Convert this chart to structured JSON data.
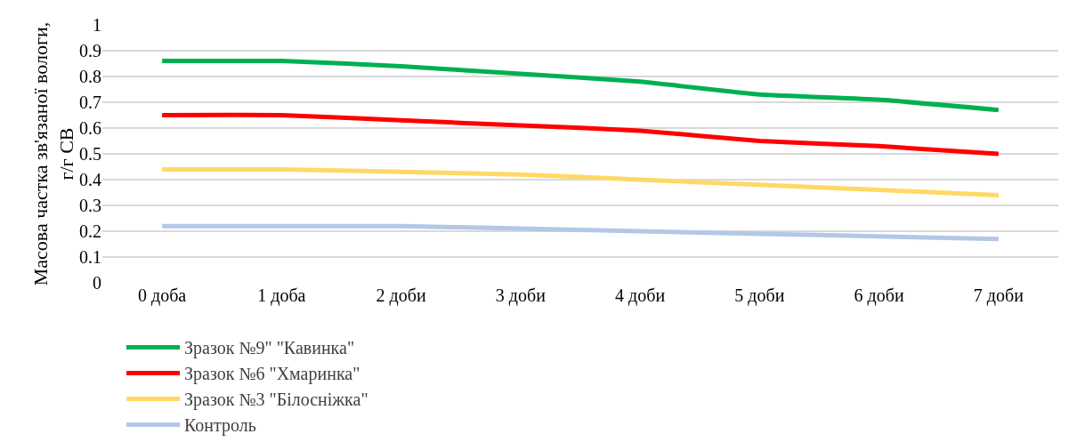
{
  "chart_data": {
    "type": "line",
    "ylabel": "Масова частка зв'язаної вологи, г/г СВ",
    "categories": [
      "0 доба",
      "1 доба",
      "2 доби",
      "3 доби",
      "4 доби",
      "5 доби",
      "6 доби",
      "7 доби"
    ],
    "series": [
      {
        "name": "Зразок №9\" \"Кавинка\"",
        "color": "#00b050",
        "values": [
          0.86,
          0.86,
          0.84,
          0.81,
          0.78,
          0.73,
          0.71,
          0.67
        ]
      },
      {
        "name": "Зразок №6 \"Хмаринка\"",
        "color": "#ff0000",
        "values": [
          0.65,
          0.65,
          0.63,
          0.61,
          0.59,
          0.55,
          0.53,
          0.5
        ]
      },
      {
        "name": "Зразок №3 \"Білосніжка\"",
        "color": "#ffd966",
        "values": [
          0.44,
          0.44,
          0.43,
          0.42,
          0.4,
          0.38,
          0.36,
          0.34
        ]
      },
      {
        "name": "Контроль",
        "color": "#b4c7e7",
        "values": [
          0.22,
          0.22,
          0.22,
          0.21,
          0.2,
          0.19,
          0.18,
          0.17
        ]
      }
    ],
    "ylim": [
      0,
      1
    ],
    "yticks": [
      0,
      0.1,
      0.2,
      0.3,
      0.4,
      0.5,
      0.6,
      0.7,
      0.8,
      0.9,
      1
    ],
    "grid": "y",
    "legend": "bottom",
    "marker": "none",
    "line_style": "solid"
  }
}
